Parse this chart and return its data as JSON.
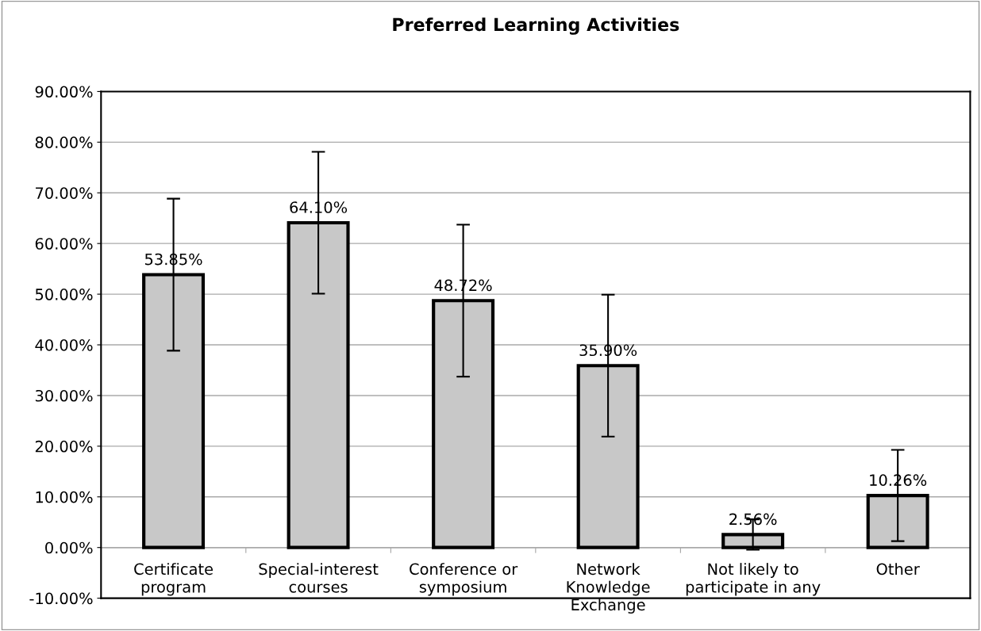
{
  "chart_data": {
    "type": "bar",
    "title": "Preferred Learning Activities",
    "categories": [
      "Certificate\nprogram",
      "Special-interest\ncourses",
      "Conference or\nsymposium",
      "Network\nKnowledge\nExchange",
      "Not likely to\nparticipate in any",
      "Other"
    ],
    "values": [
      53.85,
      64.1,
      48.72,
      35.9,
      2.56,
      10.26
    ],
    "value_labels": [
      "53.85%",
      "64.10%",
      "48.72%",
      "35.90%",
      "2.56%",
      "10.26%"
    ],
    "errors": [
      15,
      14,
      15,
      14,
      3,
      9
    ],
    "color": "#c8c8c8",
    "ylim": [
      -10,
      90
    ],
    "yticks": [
      {
        "value": -10,
        "label": "-10.00%"
      },
      {
        "value": 0,
        "label": "0.00%"
      },
      {
        "value": 10,
        "label": "10.00%"
      },
      {
        "value": 20,
        "label": "20.00%"
      },
      {
        "value": 30,
        "label": "30.00%"
      },
      {
        "value": 40,
        "label": "40.00%"
      },
      {
        "value": 50,
        "label": "50.00%"
      },
      {
        "value": 60,
        "label": "60.00%"
      },
      {
        "value": 70,
        "label": "70.00%"
      },
      {
        "value": 80,
        "label": "80.00%"
      },
      {
        "value": 90,
        "label": "90.00%"
      }
    ],
    "grid": "y",
    "legend": false
  }
}
